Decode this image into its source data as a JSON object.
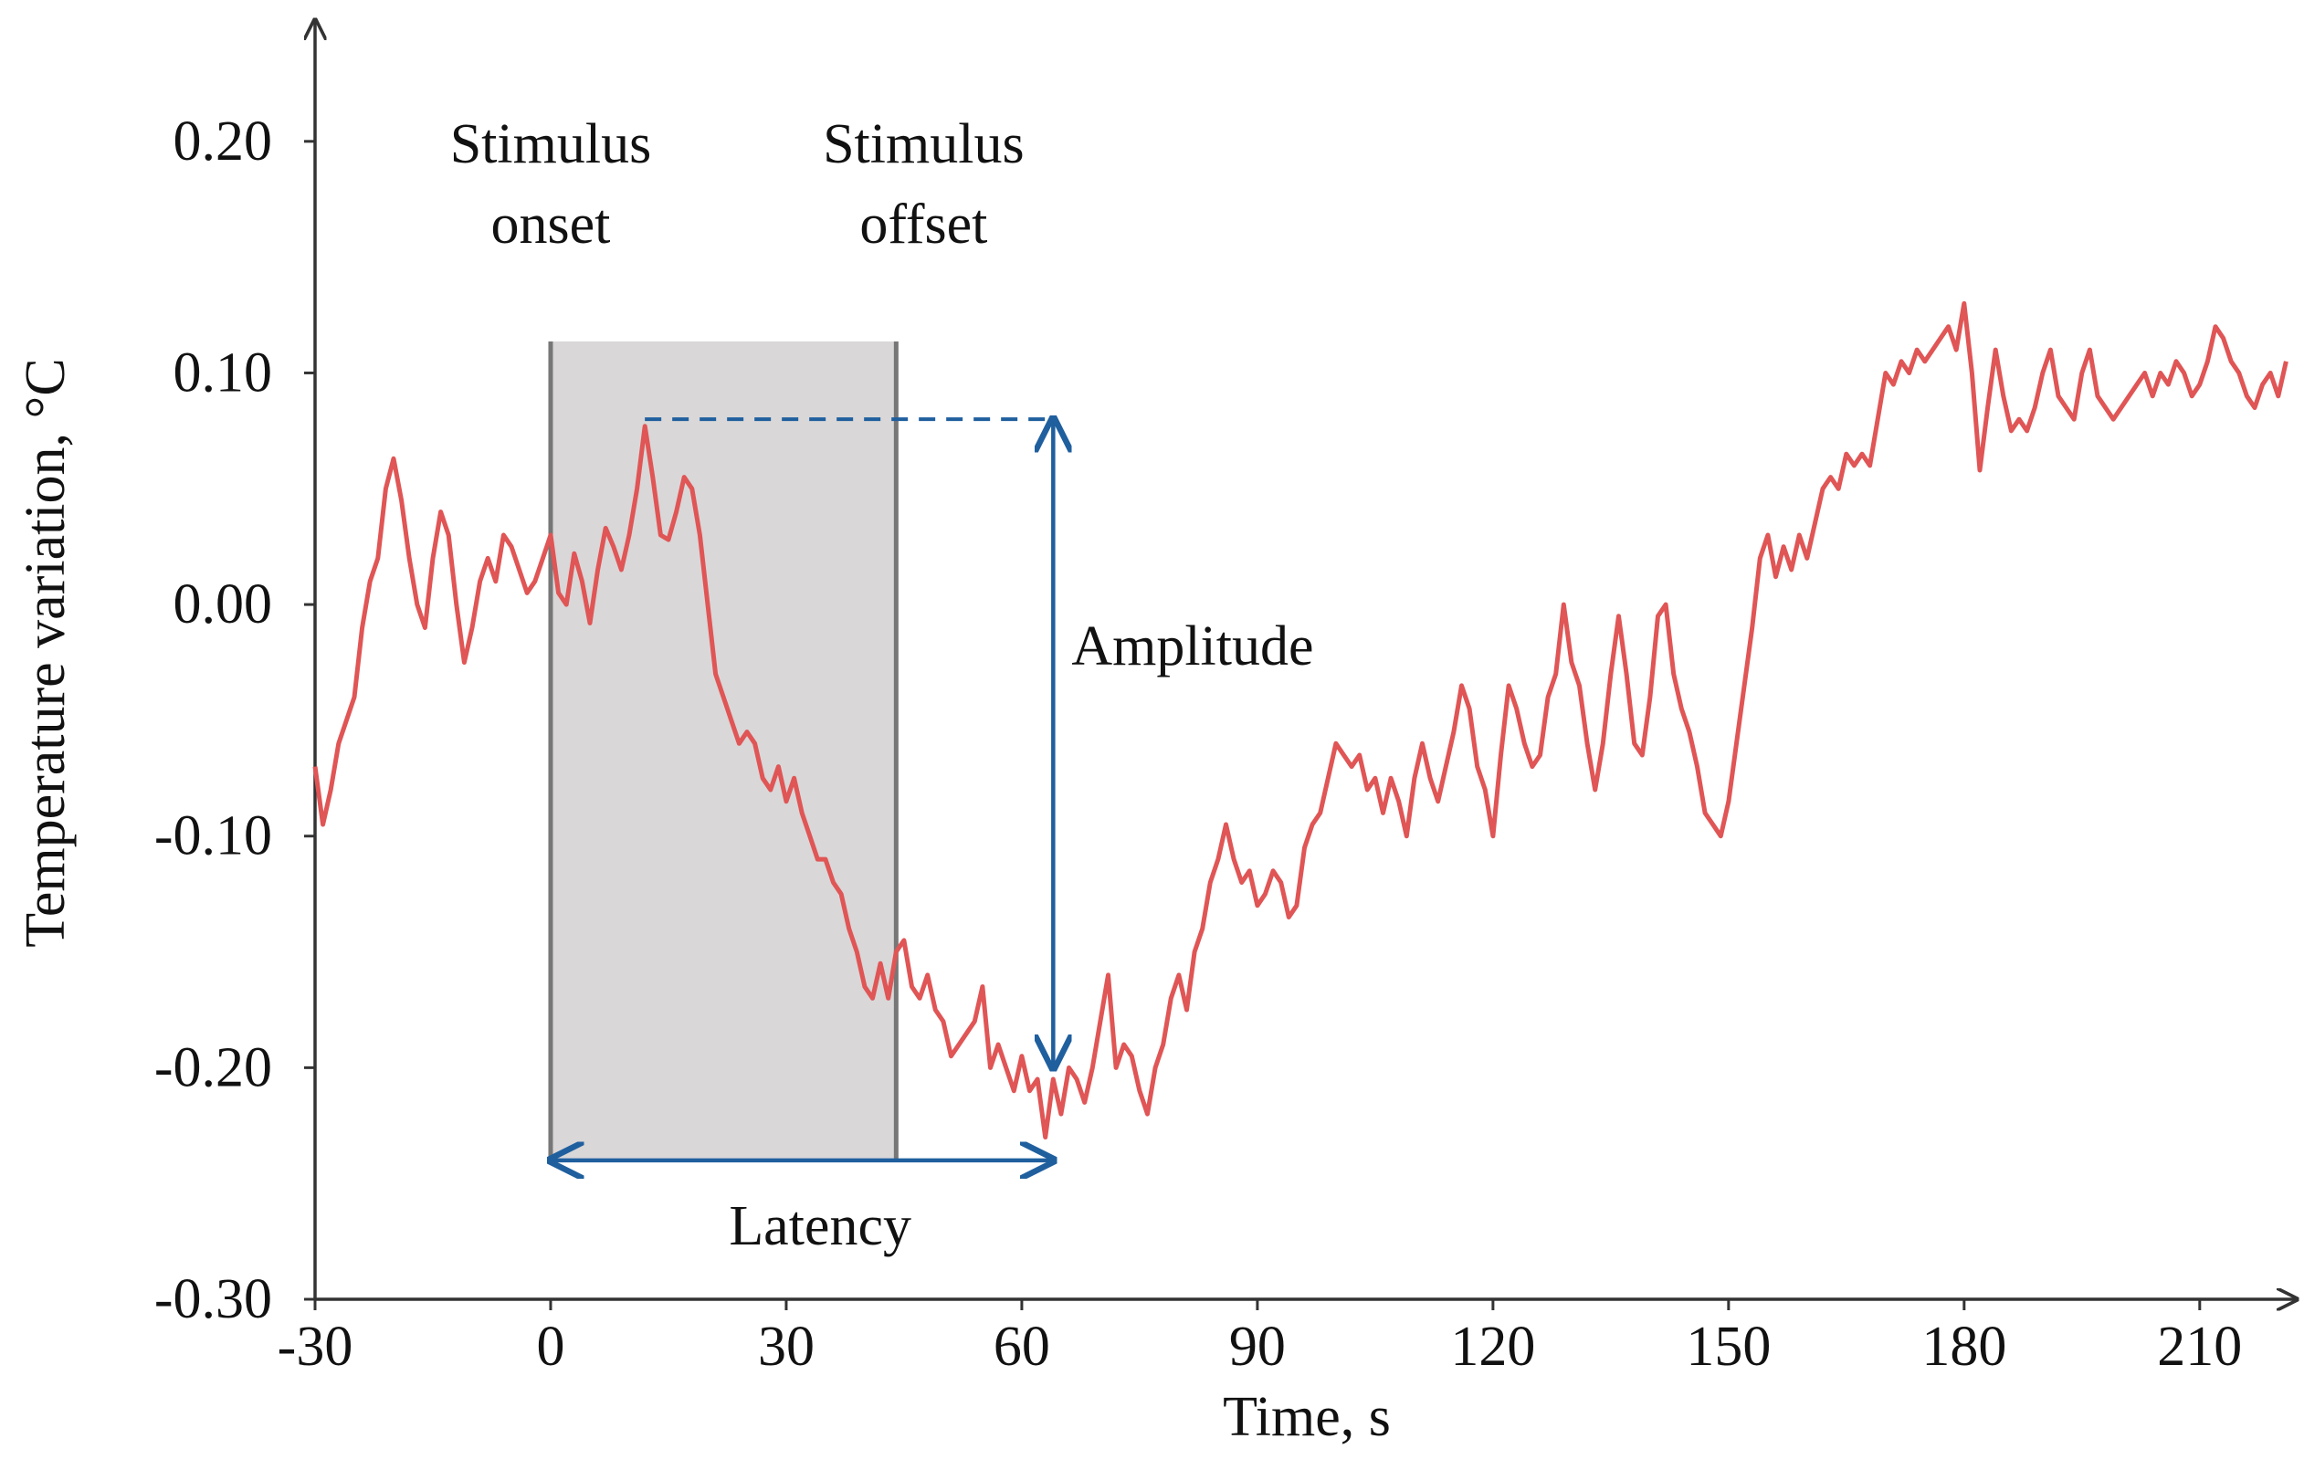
{
  "chart_data": {
    "type": "line",
    "xlabel": "Time, s",
    "ylabel": "Temperature variation, °C",
    "xlim": [
      -30,
      222
    ],
    "ylim": [
      -0.3,
      0.25
    ],
    "xticks": [
      -30,
      0,
      30,
      60,
      90,
      120,
      150,
      180,
      210
    ],
    "yticks": [
      {
        "value": -0.3,
        "label": "-0.30"
      },
      {
        "value": -0.2,
        "label": "-0.20"
      },
      {
        "value": -0.1,
        "label": "-0.10"
      },
      {
        "value": 0,
        "label": "0.00"
      },
      {
        "value": 0.1,
        "label": "0.10"
      },
      {
        "value": 0.2,
        "label": "0.20"
      }
    ],
    "color": "#e05555",
    "x": [
      -30,
      -29,
      -28,
      -27,
      -26,
      -25,
      -24,
      -23,
      -22,
      -21,
      -20,
      -19,
      -18,
      -17,
      -16,
      -15,
      -14,
      -13,
      -12,
      -11,
      -10,
      -9,
      -8,
      -7,
      -6,
      -5,
      -4,
      -3,
      -2,
      -1,
      0,
      1,
      2,
      3,
      4,
      5,
      6,
      7,
      8,
      9,
      10,
      11,
      12,
      13,
      14,
      15,
      16,
      17,
      18,
      19,
      20,
      21,
      22,
      23,
      24,
      25,
      26,
      27,
      28,
      29,
      30,
      31,
      32,
      33,
      34,
      35,
      36,
      37,
      38,
      39,
      40,
      41,
      42,
      43,
      44,
      45,
      46,
      47,
      48,
      49,
      50,
      51,
      52,
      53,
      54,
      55,
      56,
      57,
      58,
      59,
      60,
      61,
      62,
      63,
      64,
      65,
      66,
      67,
      68,
      69,
      70,
      71,
      72,
      73,
      74,
      75,
      76,
      77,
      78,
      79,
      80,
      81,
      82,
      83,
      84,
      85,
      86,
      87,
      88,
      89,
      90,
      91,
      92,
      93,
      94,
      95,
      96,
      97,
      98,
      99,
      100,
      101,
      102,
      103,
      104,
      105,
      106,
      107,
      108,
      109,
      110,
      111,
      112,
      113,
      114,
      115,
      116,
      117,
      118,
      119,
      120,
      121,
      122,
      123,
      124,
      125,
      126,
      127,
      128,
      129,
      130,
      131,
      132,
      133,
      134,
      135,
      136,
      137,
      138,
      139,
      140,
      141,
      142,
      143,
      144,
      145,
      146,
      147,
      148,
      149,
      150,
      151,
      152,
      153,
      154,
      155,
      156,
      157,
      158,
      159,
      160,
      161,
      162,
      163,
      164,
      165,
      166,
      167,
      168,
      169,
      170,
      171,
      172,
      173,
      174,
      175,
      176,
      177,
      178,
      179,
      180,
      181,
      182,
      183,
      184,
      185,
      186,
      187,
      188,
      189,
      190,
      191,
      192,
      193,
      194,
      195,
      196,
      197,
      198,
      199,
      200,
      201,
      202,
      203,
      204,
      205,
      206,
      207,
      208,
      209,
      210,
      211,
      212,
      213,
      214,
      215,
      216,
      217,
      218,
      219,
      220,
      221
    ],
    "values": [
      -0.07,
      -0.095,
      -0.08,
      -0.06,
      -0.05,
      -0.04,
      -0.01,
      0.01,
      0.02,
      0.05,
      0.063,
      0.045,
      0.02,
      0.0,
      -0.01,
      0.02,
      0.04,
      0.03,
      0.0,
      -0.025,
      -0.01,
      0.01,
      0.02,
      0.01,
      0.03,
      0.025,
      0.015,
      0.005,
      0.01,
      0.02,
      0.03,
      0.005,
      0.0,
      0.022,
      0.01,
      -0.008,
      0.015,
      0.033,
      0.025,
      0.015,
      0.03,
      0.05,
      0.077,
      0.055,
      0.03,
      0.028,
      0.04,
      0.055,
      0.05,
      0.03,
      0.0,
      -0.03,
      -0.04,
      -0.05,
      -0.06,
      -0.055,
      -0.06,
      -0.075,
      -0.08,
      -0.07,
      -0.085,
      -0.075,
      -0.09,
      -0.1,
      -0.11,
      -0.11,
      -0.12,
      -0.125,
      -0.14,
      -0.15,
      -0.165,
      -0.17,
      -0.155,
      -0.17,
      -0.15,
      -0.145,
      -0.165,
      -0.17,
      -0.16,
      -0.175,
      -0.18,
      -0.195,
      -0.19,
      -0.185,
      -0.18,
      -0.165,
      -0.2,
      -0.19,
      -0.2,
      -0.21,
      -0.195,
      -0.21,
      -0.205,
      -0.23,
      -0.205,
      -0.22,
      -0.2,
      -0.205,
      -0.215,
      -0.2,
      -0.18,
      -0.16,
      -0.2,
      -0.19,
      -0.195,
      -0.21,
      -0.22,
      -0.2,
      -0.19,
      -0.17,
      -0.16,
      -0.175,
      -0.15,
      -0.14,
      -0.12,
      -0.11,
      -0.095,
      -0.11,
      -0.12,
      -0.115,
      -0.13,
      -0.125,
      -0.115,
      -0.12,
      -0.135,
      -0.13,
      -0.105,
      -0.095,
      -0.09,
      -0.075,
      -0.06,
      -0.065,
      -0.07,
      -0.065,
      -0.08,
      -0.075,
      -0.09,
      -0.075,
      -0.085,
      -0.1,
      -0.075,
      -0.06,
      -0.075,
      -0.085,
      -0.07,
      -0.055,
      -0.035,
      -0.045,
      -0.07,
      -0.08,
      -0.1,
      -0.065,
      -0.035,
      -0.045,
      -0.06,
      -0.07,
      -0.065,
      -0.04,
      -0.03,
      0.0,
      -0.025,
      -0.035,
      -0.06,
      -0.08,
      -0.06,
      -0.03,
      -0.005,
      -0.03,
      -0.06,
      -0.065,
      -0.04,
      -0.005,
      0.0,
      -0.03,
      -0.045,
      -0.055,
      -0.07,
      -0.09,
      -0.095,
      -0.1,
      -0.085,
      -0.06,
      -0.035,
      -0.01,
      0.02,
      0.03,
      0.012,
      0.025,
      0.015,
      0.03,
      0.02,
      0.035,
      0.05,
      0.055,
      0.05,
      0.065,
      0.06,
      0.065,
      0.06,
      0.08,
      0.1,
      0.095,
      0.105,
      0.1,
      0.11,
      0.105,
      0.11,
      0.115,
      0.12,
      0.11,
      0.13,
      0.1,
      0.058,
      0.085,
      0.11,
      0.09,
      0.075,
      0.08,
      0.075,
      0.085,
      0.1,
      0.11,
      0.09,
      0.085,
      0.08,
      0.1,
      0.11,
      0.09,
      0.085,
      0.08,
      0.085,
      0.09,
      0.095,
      0.1,
      0.09,
      0.1,
      0.095,
      0.105,
      0.1,
      0.09,
      0.095,
      0.105,
      0.12,
      0.115,
      0.105,
      0.1,
      0.09,
      0.085,
      0.095,
      0.1,
      0.09,
      0.105
    ],
    "stimulus_onset": {
      "label": [
        "Stimulus",
        "onset"
      ],
      "x": 0
    },
    "stimulus_offset": {
      "label": [
        "Stimulus",
        "offset"
      ],
      "x": 44
    },
    "amplitude": {
      "label": "Amplitude",
      "x": 64,
      "peak_x": 12,
      "from": 0.08,
      "to": -0.2
    },
    "latency": {
      "label": "Latency",
      "from": 0,
      "to": 64,
      "y": -0.24
    },
    "annotation_color": "#1f5f9e"
  }
}
